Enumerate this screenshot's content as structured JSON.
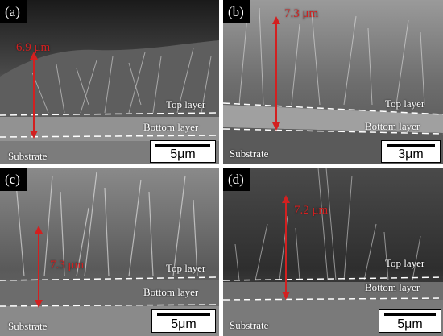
{
  "colors": {
    "measure": "#d32020",
    "dashes": "#ffffff",
    "label_bg": "#000000"
  },
  "panels": [
    {
      "label": "(a)",
      "thickness": "6.9 μm",
      "top_layer": "Top layer",
      "bottom_layer": "Bottom layer",
      "substrate": "Substrate",
      "scale": "5μm"
    },
    {
      "label": "(b)",
      "thickness": "7.3 μm",
      "top_layer": "Top layer",
      "bottom_layer": "Bottom layer",
      "substrate": "Substrate",
      "scale": "3μm"
    },
    {
      "label": "(c)",
      "thickness": "7.3 μm",
      "top_layer": "Top layer",
      "bottom_layer": "Bottom layer",
      "substrate": "Substrate",
      "scale": "5μm"
    },
    {
      "label": "(d)",
      "thickness": "7.2 μm",
      "top_layer": "Top layer",
      "bottom_layer": "Bottom layer",
      "substrate": "Substrate",
      "scale": "5μm"
    }
  ]
}
